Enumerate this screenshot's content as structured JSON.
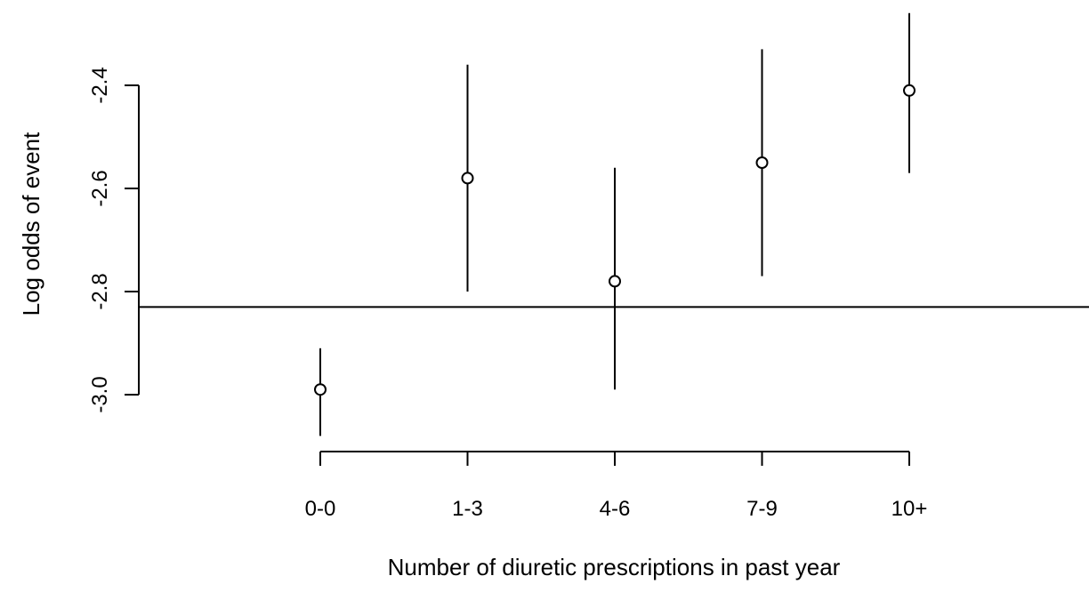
{
  "chart_data": {
    "type": "scatter",
    "subtype": "point-with-interval",
    "title": "",
    "xlabel": "Number of diuretic prescriptions in past year",
    "ylabel": "Log odds of event",
    "categories": [
      "0-0",
      "1-3",
      "4-6",
      "7-9",
      "10+"
    ],
    "estimates": [
      -2.99,
      -2.58,
      -2.78,
      -2.55,
      -2.41
    ],
    "lower": [
      -3.08,
      -2.8,
      -2.99,
      -2.77,
      -2.57
    ],
    "upper": [
      -2.91,
      -2.36,
      -2.56,
      -2.33,
      -2.26
    ],
    "reference_line": -2.83,
    "ylim": [
      -3.1,
      -2.25
    ],
    "yticks": [
      -3.0,
      -2.8,
      -2.6,
      -2.4
    ],
    "ytick_labels": [
      "-3.0",
      "-2.8",
      "-2.6",
      "-2.4"
    ],
    "grid": false,
    "legend": "none",
    "colors": {
      "marks": "#000000"
    }
  }
}
